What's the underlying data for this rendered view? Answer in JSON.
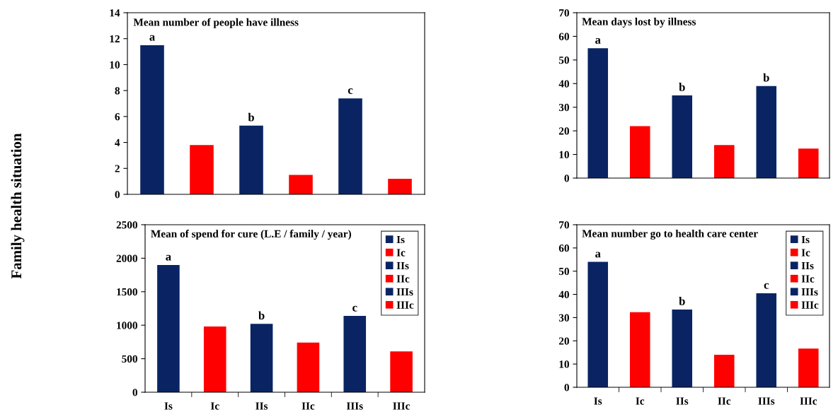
{
  "chart_data": [
    {
      "type": "bar",
      "title": "Mean number of people have illness",
      "categories": [
        null,
        null,
        null,
        null,
        null,
        null
      ],
      "values": [
        11.5,
        3.8,
        5.3,
        1.5,
        7.4,
        1.2
      ],
      "colors": [
        "#0a2463",
        "#ff0000",
        "#0a2463",
        "#ff0000",
        "#0a2463",
        "#ff0000"
      ],
      "value_labels": [
        "a",
        null,
        "b",
        null,
        "c",
        null
      ],
      "ylim": [
        0,
        14
      ],
      "yticks": [
        0,
        2,
        4,
        6,
        8,
        10,
        12,
        14
      ],
      "annotations": [
        "Family health situation"
      ]
    },
    {
      "type": "bar",
      "title": "Mean days lost by illness",
      "categories": [
        null,
        null,
        null,
        null,
        null,
        null
      ],
      "values": [
        55,
        22,
        35,
        14,
        39,
        12.5
      ],
      "colors": [
        "#0a2463",
        "#ff0000",
        "#0a2463",
        "#ff0000",
        "#0a2463",
        "#ff0000"
      ],
      "value_labels": [
        "a",
        null,
        "b",
        null,
        "b",
        null
      ],
      "ylim": [
        0,
        70
      ],
      "yticks": [
        0,
        10,
        20,
        30,
        40,
        50,
        60,
        70
      ]
    },
    {
      "type": "bar",
      "title": "Mean of spend for cure (L.E / family / year)",
      "categories": [
        "Is",
        "Ic",
        "IIs",
        "IIc",
        "IIIs",
        "IIIc"
      ],
      "series": [
        {
          "name": "Is",
          "color": "#0a2463",
          "values": [
            1900,
            null,
            null,
            null,
            null,
            null
          ],
          "value_labels": [
            "a",
            null,
            null,
            null,
            null,
            null
          ]
        },
        {
          "name": "Ic",
          "color": "#ff0000",
          "values": [
            null,
            980,
            null,
            null,
            null,
            null
          ]
        },
        {
          "name": "IIs",
          "color": "#0a2463",
          "values": [
            null,
            null,
            1020,
            null,
            null,
            null
          ],
          "value_labels": [
            null,
            null,
            "b",
            null,
            null,
            null
          ]
        },
        {
          "name": "IIc",
          "color": "#ff0000",
          "values": [
            null,
            null,
            null,
            740,
            null,
            null
          ]
        },
        {
          "name": "IIIs",
          "color": "#0a2463",
          "values": [
            null,
            null,
            null,
            null,
            1140,
            null
          ],
          "value_labels": [
            null,
            null,
            null,
            null,
            "c",
            null
          ]
        },
        {
          "name": "IIIc",
          "color": "#ff0000",
          "values": [
            null,
            null,
            null,
            null,
            null,
            610
          ]
        }
      ],
      "ylim": [
        0,
        2500
      ],
      "yticks": [
        0,
        500,
        1000,
        1500,
        2000,
        2500
      ],
      "legend": "top right"
    },
    {
      "type": "bar",
      "title": "Mean number go to health care center",
      "categories": [
        "Is",
        "Ic",
        "IIs",
        "IIc",
        "IIIs",
        "IIIc"
      ],
      "series": [
        {
          "name": "Is",
          "color": "#0a2463",
          "values": [
            54,
            null,
            null,
            null,
            null,
            null
          ],
          "value_labels": [
            "a",
            null,
            null,
            null,
            null,
            null
          ]
        },
        {
          "name": "Ic",
          "color": "#ff0000",
          "values": [
            null,
            32.3,
            null,
            null,
            null,
            null
          ]
        },
        {
          "name": "IIs",
          "color": "#0a2463",
          "values": [
            null,
            null,
            33.5,
            null,
            null,
            null
          ],
          "value_labels": [
            null,
            null,
            "b",
            null,
            null,
            null
          ]
        },
        {
          "name": "IIc",
          "color": "#ff0000",
          "values": [
            null,
            null,
            null,
            14,
            null,
            null
          ]
        },
        {
          "name": "IIIs",
          "color": "#0a2463",
          "values": [
            null,
            null,
            null,
            null,
            40.5,
            null
          ],
          "value_labels": [
            null,
            null,
            null,
            null,
            "c",
            null
          ]
        },
        {
          "name": "IIIc",
          "color": "#ff0000",
          "values": [
            null,
            null,
            null,
            null,
            null,
            16.7
          ]
        }
      ],
      "ylim": [
        0,
        70
      ],
      "yticks": [
        0,
        10,
        20,
        30,
        40,
        50,
        60,
        70
      ],
      "legend": "top right"
    }
  ]
}
